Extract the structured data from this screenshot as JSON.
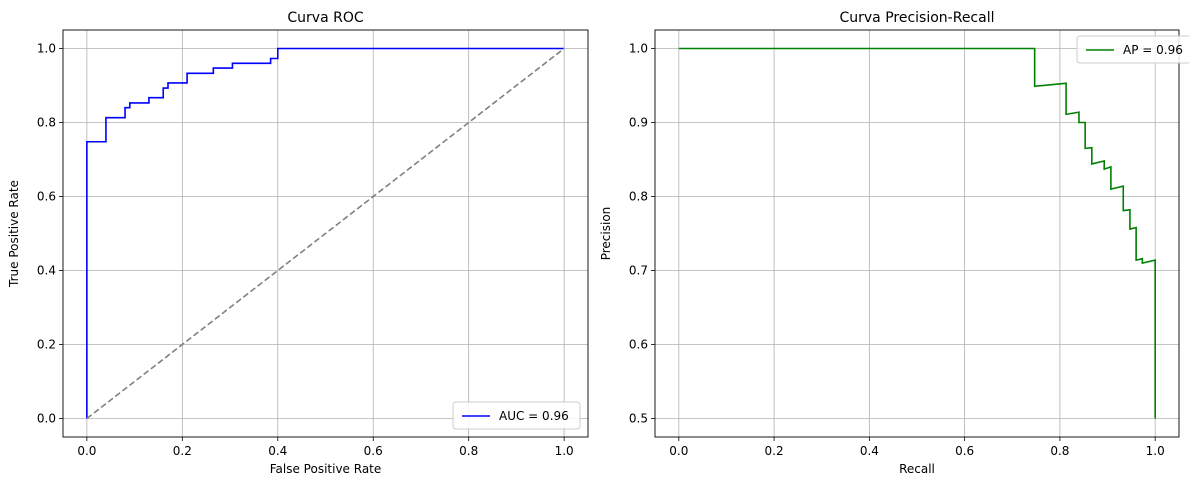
{
  "chart_data": [
    {
      "type": "line",
      "title": "Curva ROC",
      "xlabel": "False Positive Rate",
      "ylabel": "True Positive Rate",
      "xlim": [
        -0.05,
        1.05
      ],
      "ylim": [
        -0.05,
        1.05
      ],
      "xticks": [
        0.0,
        0.2,
        0.4,
        0.6,
        0.8,
        1.0
      ],
      "yticks": [
        0.0,
        0.2,
        0.4,
        0.6,
        0.8,
        1.0
      ],
      "xtick_labels": [
        "0.0",
        "0.2",
        "0.4",
        "0.6",
        "0.8",
        "1.0"
      ],
      "ytick_labels": [
        "0.0",
        "0.2",
        "0.4",
        "0.6",
        "0.8",
        "1.0"
      ],
      "grid": true,
      "legend_position": "lower right",
      "series": [
        {
          "name": "AUC = 0.96",
          "color": "#0000ff",
          "style": "solid",
          "step": true,
          "x": [
            0.0,
            0.0,
            0.04,
            0.04,
            0.08,
            0.08,
            0.09,
            0.09,
            0.13,
            0.13,
            0.16,
            0.16,
            0.17,
            0.17,
            0.21,
            0.21,
            0.265,
            0.265,
            0.305,
            0.305,
            0.385,
            0.385,
            0.4,
            0.4,
            1.0
          ],
          "y": [
            0.0,
            0.748,
            0.748,
            0.813,
            0.813,
            0.84,
            0.84,
            0.853,
            0.853,
            0.867,
            0.867,
            0.893,
            0.893,
            0.907,
            0.907,
            0.933,
            0.933,
            0.947,
            0.947,
            0.96,
            0.96,
            0.973,
            0.973,
            1.0,
            1.0
          ]
        },
        {
          "name": "",
          "color": "#808080",
          "style": "dashed",
          "x": [
            0.0,
            1.0
          ],
          "y": [
            0.0,
            1.0
          ]
        }
      ]
    },
    {
      "type": "line",
      "title": "Curva Precision-Recall",
      "xlabel": "Recall",
      "ylabel": "Precision",
      "xlim": [
        -0.05,
        1.05
      ],
      "ylim": [
        0.475,
        1.025
      ],
      "xticks": [
        0.0,
        0.2,
        0.4,
        0.6,
        0.8,
        1.0
      ],
      "yticks": [
        0.5,
        0.6,
        0.7,
        0.8,
        0.9,
        1.0
      ],
      "xtick_labels": [
        "0.0",
        "0.2",
        "0.4",
        "0.6",
        "0.8",
        "1.0"
      ],
      "ytick_labels": [
        "0.5",
        "0.6",
        "0.7",
        "0.8",
        "0.9",
        "1.0"
      ],
      "grid": true,
      "legend_position": "upper right",
      "series": [
        {
          "name": "AP = 0.96",
          "color": "#008000",
          "style": "solid",
          "x": [
            0.0,
            0.747,
            0.747,
            0.813,
            0.813,
            0.84,
            0.84,
            0.853,
            0.853,
            0.867,
            0.867,
            0.893,
            0.893,
            0.907,
            0.907,
            0.933,
            0.933,
            0.947,
            0.947,
            0.96,
            0.96,
            0.973,
            0.973,
            1.0,
            1.0
          ],
          "y": [
            1.0,
            1.0,
            0.949,
            0.953,
            0.911,
            0.914,
            0.9,
            0.9,
            0.865,
            0.866,
            0.844,
            0.848,
            0.837,
            0.84,
            0.81,
            0.814,
            0.781,
            0.782,
            0.756,
            0.758,
            0.714,
            0.716,
            0.71,
            0.714,
            0.5
          ]
        }
      ]
    }
  ]
}
